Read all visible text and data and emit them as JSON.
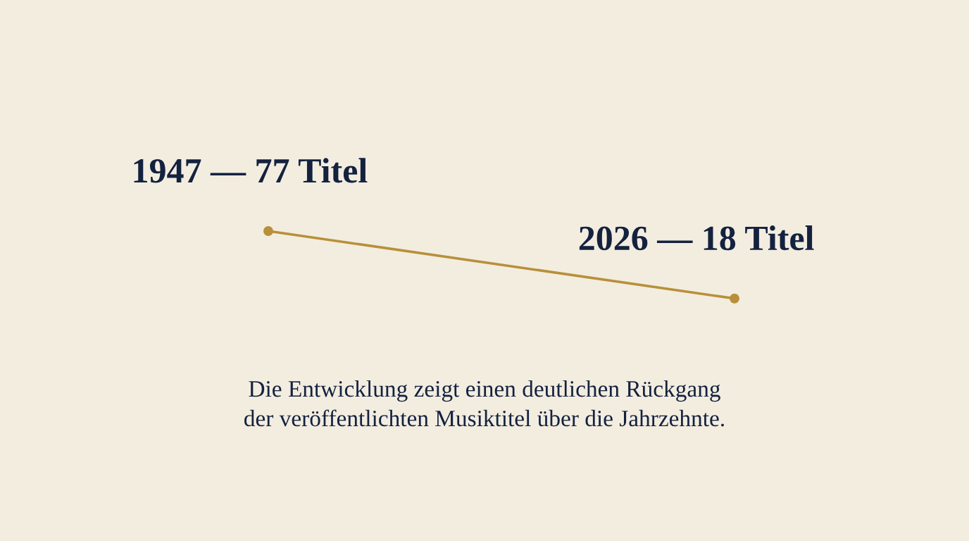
{
  "chart_data": {
    "type": "line",
    "categories": [
      null,
      null
    ],
    "series": [
      {
        "color": "#b8903a",
        "values": [
          77,
          18
        ],
        "value_labels": [
          "1947 — 77 Titel",
          "2026 — 18 Titel"
        ]
      }
    ],
    "marker": "circle",
    "line_style": "solid",
    "legend": false,
    "tick_labels": false,
    "annotations": [
      "Die Entwicklung zeigt einen deutlichen Rückgang\nder veröffentlichten Musiktitel über die Jahrzehnte."
    ]
  }
}
